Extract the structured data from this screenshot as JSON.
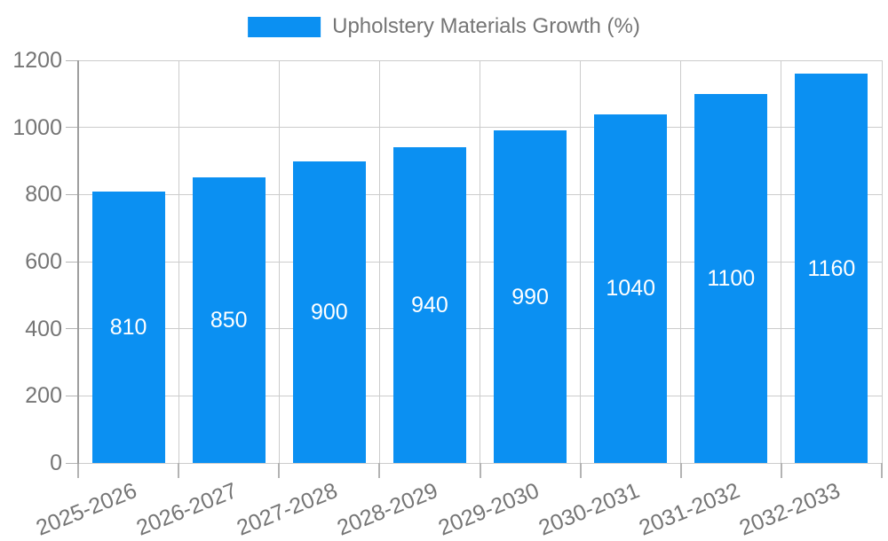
{
  "chart_data": {
    "type": "bar",
    "title": "Upholstery Materials Growth (%)",
    "categories": [
      "2025-2026",
      "2026-2027",
      "2027-2028",
      "2028-2029",
      "2029-2030",
      "2030-2031",
      "2031-2032",
      "2032-2033"
    ],
    "values": [
      810,
      850,
      900,
      940,
      990,
      1040,
      1100,
      1160
    ],
    "value_labels": [
      "810",
      "850",
      "900",
      "940",
      "990",
      "1040",
      "1100",
      "1160"
    ],
    "xlabel": "",
    "ylabel": "",
    "ylim": [
      0,
      1200
    ],
    "yticks": [
      0,
      200,
      400,
      600,
      800,
      1000,
      1200
    ],
    "grid": true,
    "legend_position": "top-center",
    "value_label_position": "inside-center",
    "colors": {
      "bar": "#0B90F2",
      "value_label": "#FFFFFF",
      "axis_text": "#757575",
      "gridline": "#CCCCCC",
      "tick": "#B3B3B3",
      "axis_line": "#9E9E9E",
      "background": "#FFFFFF"
    }
  }
}
